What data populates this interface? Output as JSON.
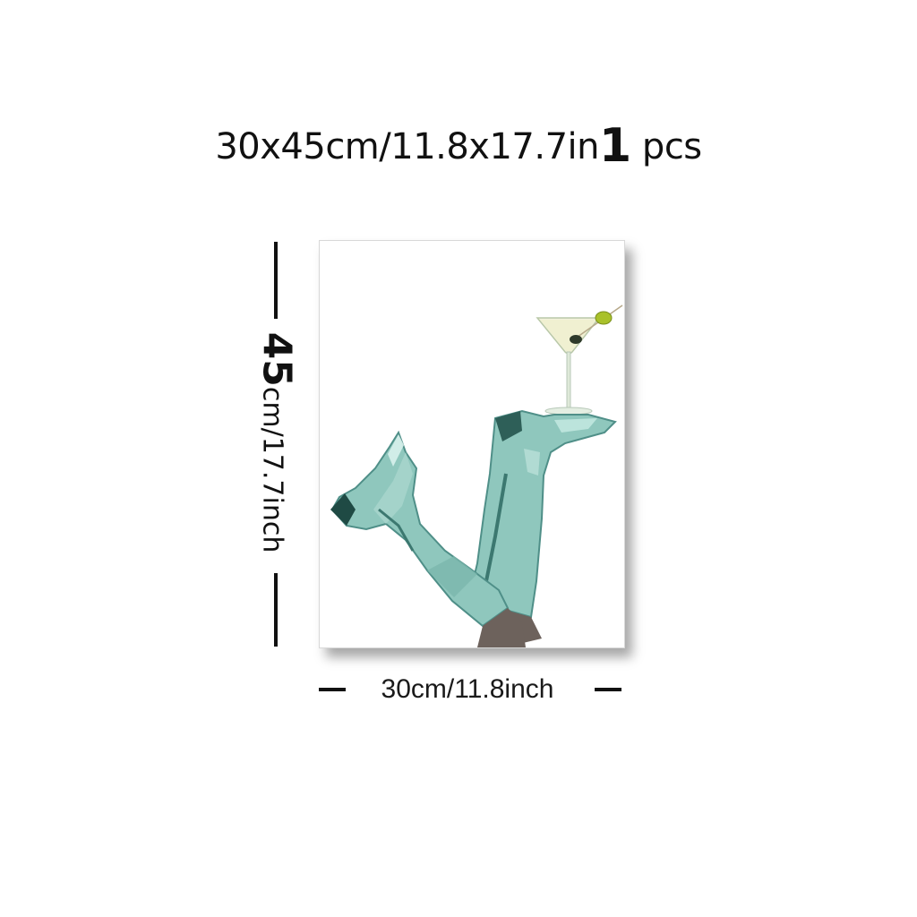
{
  "headline": {
    "size_text": "30x45cm/11.8x17.7in",
    "quantity": "1",
    "unit": "pcs"
  },
  "height_dimension": {
    "value": "45",
    "text": "cm/17.7inch"
  },
  "width_dimension": {
    "text": "30cm/11.8inch"
  },
  "artwork": {
    "boot_color": "#8fc7bd",
    "boot_shadow_color": "#4f8f88",
    "heel_color": "#1f4a44",
    "olive_color": "#a9c12a",
    "skin_shadow_color": "#6d625c"
  }
}
